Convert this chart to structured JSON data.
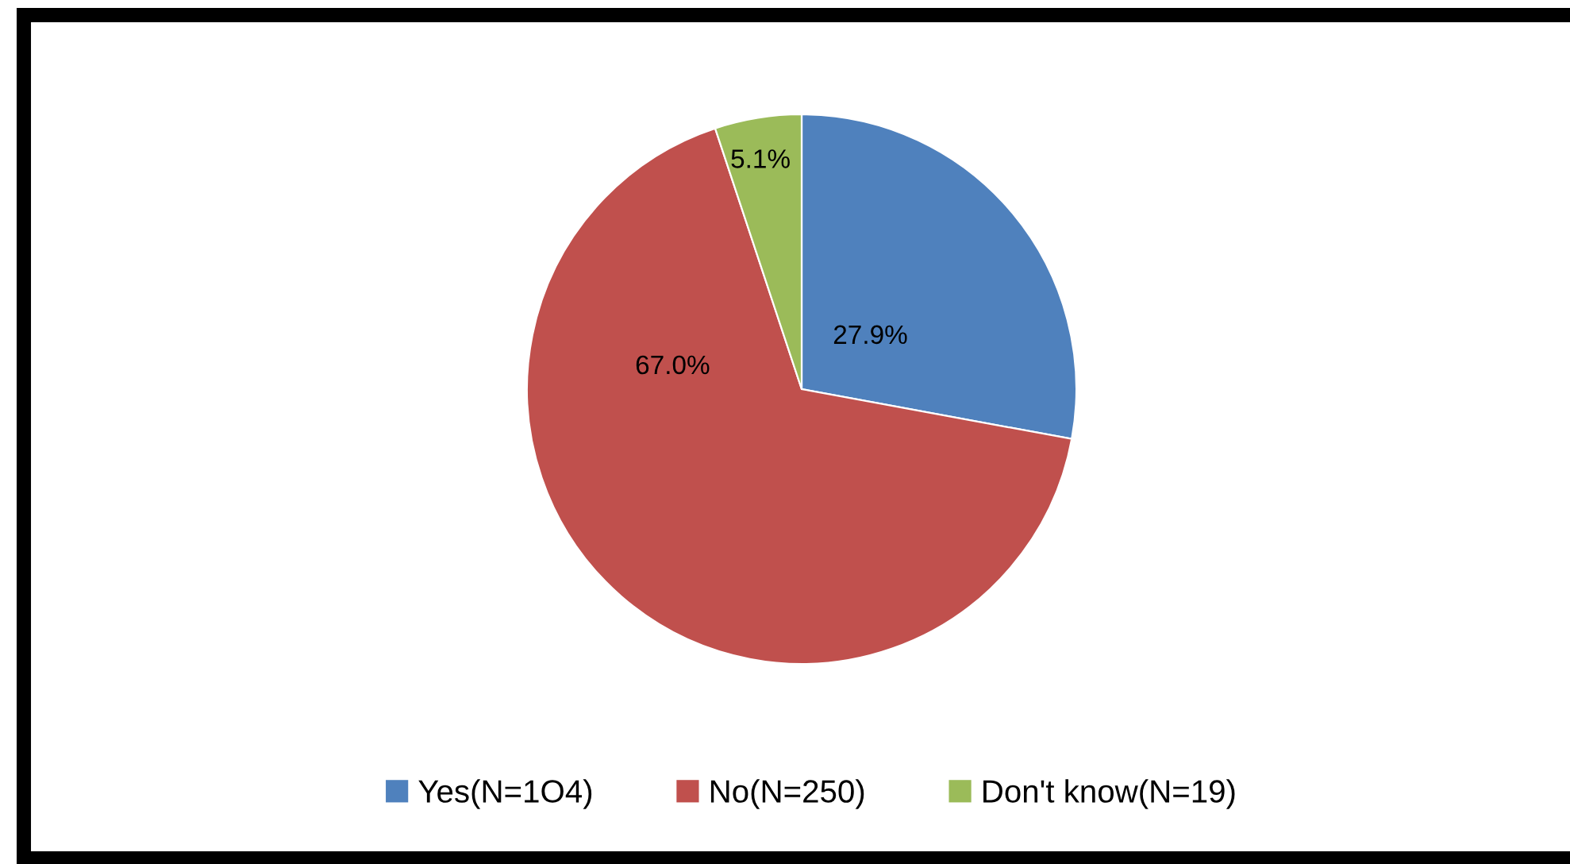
{
  "chart_data": {
    "type": "pie",
    "categories": [
      "Yes(N=1O4)",
      "No(N=250)",
      "Don't know(N=19)"
    ],
    "values": [
      27.9,
      67.0,
      5.1
    ],
    "colors": [
      "#4f81bd",
      "#c0504d",
      "#9bbb59"
    ],
    "value_labels": [
      "27.9%",
      "67.0%",
      "5.1%"
    ],
    "legend": "bottom"
  }
}
